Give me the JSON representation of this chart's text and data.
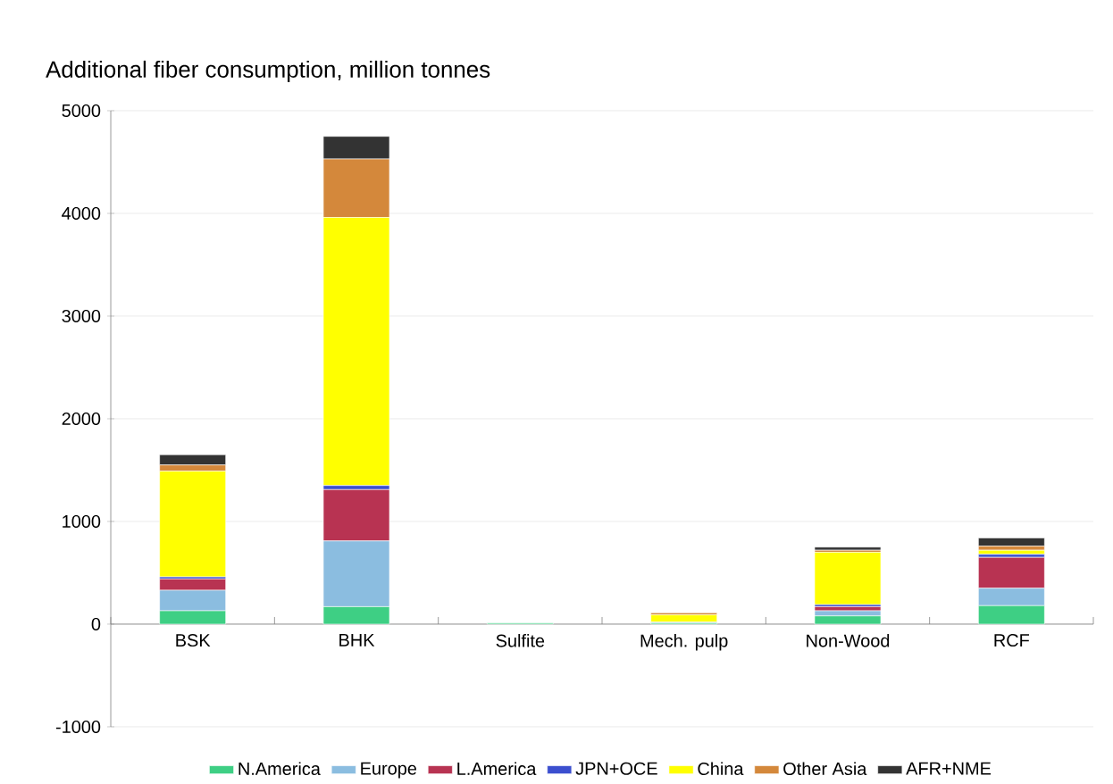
{
  "chart_data": {
    "type": "bar",
    "title": "Additional fiber consumption, million tonnes",
    "categories": [
      "BSK",
      "BHK",
      "Sulfite",
      "Mech. pulp",
      "Non-Wood",
      "RCF"
    ],
    "stacked": true,
    "series": [
      {
        "name": "N.America",
        "color": "#3ecf84",
        "values": [
          130,
          170,
          10,
          10,
          80,
          180
        ]
      },
      {
        "name": "Europe",
        "color": "#8bbde0",
        "values": [
          200,
          640,
          0,
          10,
          50,
          170
        ]
      },
      {
        "name": "L.America",
        "color": "#b83352",
        "values": [
          110,
          500,
          0,
          0,
          40,
          300
        ]
      },
      {
        "name": "JPN+OCE",
        "color": "#3b4fcf",
        "values": [
          20,
          40,
          0,
          0,
          20,
          30
        ]
      },
      {
        "name": "China",
        "color": "#ffff00",
        "values": [
          1030,
          2610,
          0,
          70,
          510,
          40
        ]
      },
      {
        "name": "Other Asia",
        "color": "#d4883b",
        "values": [
          60,
          570,
          0,
          20,
          20,
          40
        ]
      },
      {
        "name": "AFR+NME",
        "color": "#333333",
        "values": [
          100,
          220,
          0,
          0,
          30,
          80
        ]
      }
    ],
    "ylim": [
      -1000,
      5000
    ],
    "yticks": [
      -1000,
      0,
      1000,
      2000,
      3000,
      4000,
      5000
    ],
    "grid": "y",
    "legend": "bottom"
  }
}
